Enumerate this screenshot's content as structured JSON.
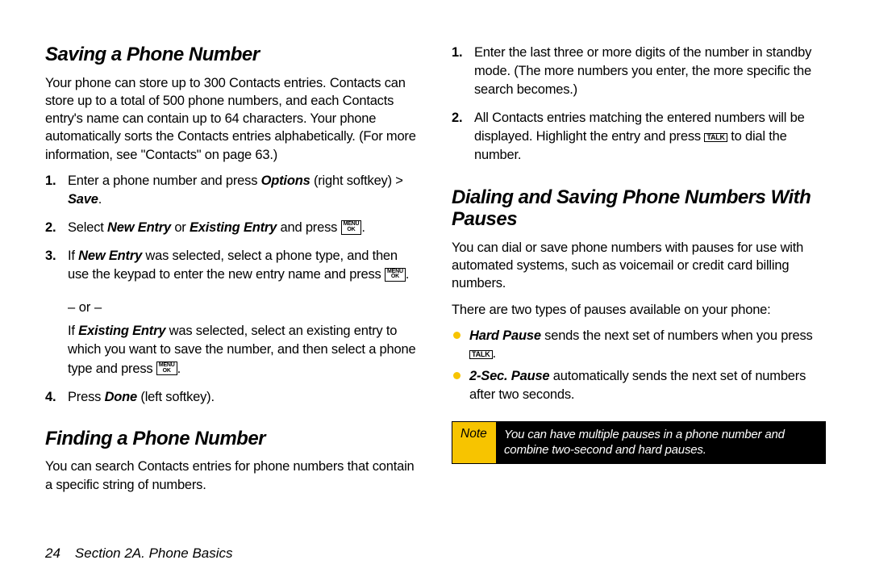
{
  "colors": {
    "accent": "#f7c400",
    "text": "#000000",
    "bg": "#ffffff",
    "note_bg": "#000000",
    "note_text": "#ffffff"
  },
  "keys": {
    "menu_ok": "MENU\nOK",
    "talk": "TALK"
  },
  "left": {
    "h1": "Saving a Phone Number",
    "p1": "Your phone can store up to 300 Contacts entries. Contacts can store up to a total of 500 phone numbers, and each Contacts entry's name can contain up to 64 characters. Your phone automatically sorts the Contacts entries alphabetically. (For more information, see \"Contacts\" on page 63.)",
    "s1_a": "Enter a phone number and press ",
    "s1_opt": "Options",
    "s1_b": " (right softkey) > ",
    "s1_save": "Save",
    "s1_c": ".",
    "s2_a": "Select ",
    "s2_ne": "New Entry",
    "s2_b": " or ",
    "s2_ee": "Existing Entry",
    "s2_c": " and press ",
    "s2_d": ".",
    "s3_a": "If ",
    "s3_ne": "New Entry",
    "s3_b": " was selected, select a phone type, and then use the keypad to enter the new entry name and press ",
    "s3_c": ".",
    "or": "– or –",
    "s3d_a": "If ",
    "s3d_ee": "Existing Entry",
    "s3d_b": " was selected, select an existing entry to which you want to save the number, and then select a phone type and press ",
    "s3d_c": ".",
    "s4_a": "Press ",
    "s4_done": "Done",
    "s4_b": " (left softkey).",
    "h2": "Finding a Phone Number",
    "p2": "You can search Contacts entries for phone numbers that contain a specific string of numbers."
  },
  "right": {
    "r1": "Enter the last three or more digits of the number in standby mode. (The more numbers you enter, the more specific the search becomes.)",
    "r2_a": "All Contacts entries matching the entered numbers will be displayed. Highlight the entry and press ",
    "r2_b": " to dial the number.",
    "h3": "Dialing and Saving Phone Numbers With Pauses",
    "p3": "You can dial or save phone numbers with pauses for use with automated systems, such as voicemail or credit card billing numbers.",
    "p4": "There are two types of pauses available on your phone:",
    "b1_hp": "Hard Pause",
    "b1_a": " sends the next set of numbers when you press ",
    "b1_b": ".",
    "b2_sp": "2-Sec. Pause",
    "b2_a": " automatically sends the next set of numbers after two seconds.",
    "note_label": "Note",
    "note_text": "You can have multiple pauses in a phone number and combine two-second and hard pauses."
  },
  "footer": {
    "page": "24",
    "section": "Section 2A. Phone Basics"
  }
}
